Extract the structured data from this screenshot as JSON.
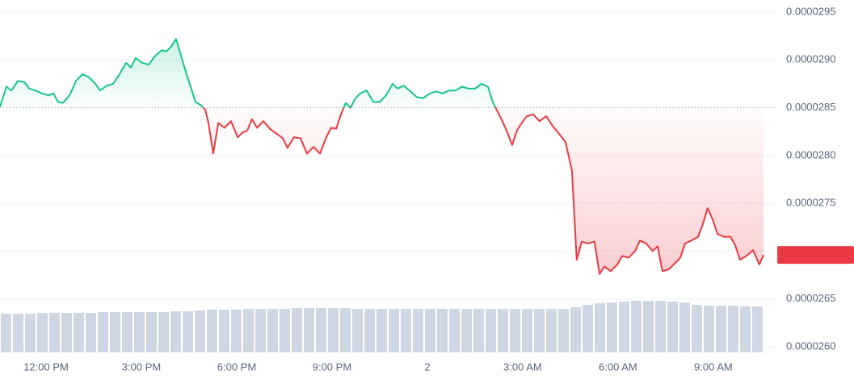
{
  "chart_data": {
    "type": "line",
    "x": [
      10.55,
      10.75,
      10.91,
      11.11,
      11.31,
      11.47,
      11.67,
      11.87,
      12.08,
      12.23,
      12.38,
      12.53,
      12.74,
      12.94,
      13.14,
      13.35,
      13.55,
      13.7,
      13.91,
      14.11,
      14.31,
      14.52,
      14.67,
      14.82,
      15.02,
      15.23,
      15.43,
      15.64,
      15.79,
      15.94,
      16.09,
      16.25,
      16.4,
      16.55,
      16.7,
      16.86,
      17.01,
      17.11,
      17.26,
      17.42,
      17.62,
      17.82,
      18.03,
      18.18,
      18.33,
      18.48,
      18.64,
      18.84,
      19.04,
      19.25,
      19.45,
      19.6,
      19.8,
      20.01,
      20.21,
      20.42,
      20.62,
      20.82,
      20.97,
      21.13,
      21.28,
      21.43,
      21.58,
      21.74,
      21.89,
      22.09,
      22.3,
      22.5,
      22.7,
      22.91,
      23.06,
      23.26,
      23.47,
      23.67,
      23.87,
      24.08,
      24.28,
      24.48,
      24.69,
      24.89,
      25.09,
      25.3,
      25.5,
      25.7,
      25.91,
      26.06,
      26.21,
      26.36,
      26.52,
      26.67,
      26.82,
      26.97,
      27.13,
      27.33,
      27.53,
      27.74,
      27.94,
      28.14,
      28.35,
      28.55,
      28.7,
      28.86,
      29.06,
      29.26,
      29.42,
      29.57,
      29.77,
      29.98,
      30.13,
      30.33,
      30.54,
      30.69,
      30.89,
      31.09,
      31.25,
      31.4,
      31.6,
      31.81,
      31.96,
      32.11,
      32.31,
      32.52,
      32.67,
      32.82,
      32.98,
      33.13,
      33.33,
      33.54,
      33.69,
      33.84,
      34.04,
      34.25,
      34.45,
      34.58
    ],
    "values": [
      2.851e-05,
      2.872e-05,
      2.868e-05,
      2.878e-05,
      2.877e-05,
      2.87e-05,
      2.868e-05,
      2.865e-05,
      2.863e-05,
      2.865e-05,
      2.856e-05,
      2.855e-05,
      2.863e-05,
      2.878e-05,
      2.885e-05,
      2.882e-05,
      2.875e-05,
      2.868e-05,
      2.873e-05,
      2.875e-05,
      2.885e-05,
      2.897e-05,
      2.892e-05,
      2.902e-05,
      2.897e-05,
      2.895e-05,
      2.904e-05,
      2.91e-05,
      2.909e-05,
      2.914e-05,
      2.922e-05,
      2.904e-05,
      2.887e-05,
      2.872e-05,
      2.856e-05,
      2.853e-05,
      2.848e-05,
      2.834e-05,
      2.802e-05,
      2.834e-05,
      2.829e-05,
      2.836e-05,
      2.819e-05,
      2.824e-05,
      2.826e-05,
      2.838e-05,
      2.829e-05,
      2.836e-05,
      2.828e-05,
      2.823e-05,
      2.818e-05,
      2.808e-05,
      2.819e-05,
      2.818e-05,
      2.802e-05,
      2.809e-05,
      2.802e-05,
      2.819e-05,
      2.829e-05,
      2.828e-05,
      2.843e-05,
      2.855e-05,
      2.85e-05,
      2.86e-05,
      2.865e-05,
      2.868e-05,
      2.856e-05,
      2.856e-05,
      2.863e-05,
      2.875e-05,
      2.87e-05,
      2.873e-05,
      2.867e-05,
      2.861e-05,
      2.86e-05,
      2.865e-05,
      2.867e-05,
      2.865e-05,
      2.868e-05,
      2.868e-05,
      2.872e-05,
      2.87e-05,
      2.87e-05,
      2.875e-05,
      2.872e-05,
      2.856e-05,
      2.846e-05,
      2.836e-05,
      2.824e-05,
      2.811e-05,
      2.826e-05,
      2.834e-05,
      2.841e-05,
      2.843e-05,
      2.836e-05,
      2.841e-05,
      2.831e-05,
      2.823e-05,
      2.814e-05,
      2.784e-05,
      2.691e-05,
      2.71e-05,
      2.708e-05,
      2.71e-05,
      2.676e-05,
      2.684e-05,
      2.679e-05,
      2.686e-05,
      2.695e-05,
      2.693e-05,
      2.7e-05,
      2.711e-05,
      2.708e-05,
      2.7e-05,
      2.705e-05,
      2.679e-05,
      2.681e-05,
      2.688e-05,
      2.693e-05,
      2.708e-05,
      2.711e-05,
      2.715e-05,
      2.728e-05,
      2.745e-05,
      2.733e-05,
      2.718e-05,
      2.715e-05,
      2.715e-05,
      2.706e-05,
      2.691e-05,
      2.695e-05,
      2.701e-05,
      2.686e-05,
      2.696e-05
    ],
    "baseline": 2.85e-05,
    "up_color": "#16c784",
    "down_color": "#ea3943",
    "xlim": [
      10.55,
      34.58
    ],
    "xticks": [
      {
        "value": 12,
        "label": "12:00 PM"
      },
      {
        "value": 15,
        "label": "3:00 PM"
      },
      {
        "value": 18,
        "label": "6:00 PM"
      },
      {
        "value": 21,
        "label": "9:00 PM"
      },
      {
        "value": 24,
        "label": "2"
      },
      {
        "value": 27,
        "label": "3:00 AM"
      },
      {
        "value": 30,
        "label": "6:00 AM"
      },
      {
        "value": 33,
        "label": "9:00 AM"
      }
    ],
    "ylim": [
      2.6e-05,
      2.95e-05
    ],
    "yticks": [
      {
        "value": 2.6e-05,
        "label": "0.0000260"
      },
      {
        "value": 2.65e-05,
        "label": "0.0000265"
      },
      {
        "value": 2.7e-05,
        "label": "0.0000270"
      },
      {
        "value": 2.75e-05,
        "label": "0.0000275"
      },
      {
        "value": 2.8e-05,
        "label": "0.0000280"
      },
      {
        "value": 2.85e-05,
        "label": "0.0000285"
      },
      {
        "value": 2.9e-05,
        "label": "0.0000290"
      },
      {
        "value": 2.95e-05,
        "label": "0.0000295"
      }
    ],
    "grid": true,
    "volume": {
      "color": "#cfd6e4",
      "y2lim": [
        0,
        100
      ],
      "values": [
        48,
        48,
        48,
        49,
        49,
        49,
        49,
        49,
        50,
        50,
        50,
        50,
        50,
        50,
        51,
        51,
        52,
        53,
        53,
        53,
        54,
        54,
        54,
        54,
        55,
        55,
        55,
        55,
        55,
        54,
        54,
        54,
        54,
        54,
        54,
        54,
        54,
        54,
        54,
        54,
        54,
        54,
        54,
        54,
        54,
        54,
        54,
        56,
        59,
        61,
        62,
        63,
        64,
        64,
        64,
        63,
        62,
        59,
        58,
        58,
        58,
        57,
        57
      ]
    }
  }
}
